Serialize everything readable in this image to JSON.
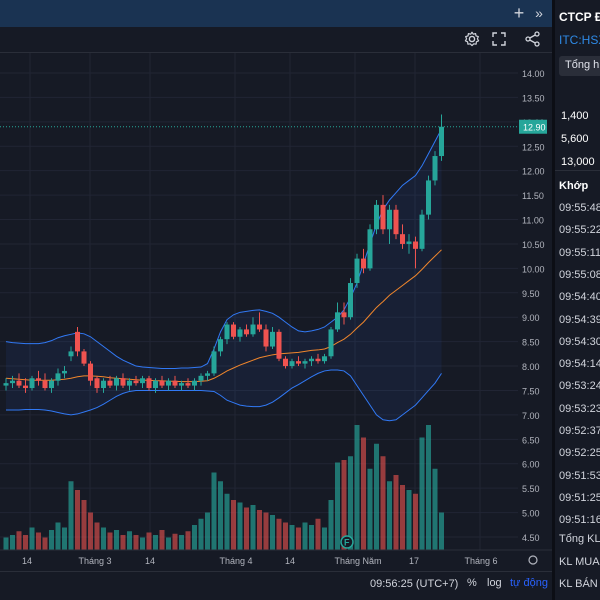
{
  "header": {
    "plus_icon": "plus-icon",
    "collapse_icon": "double-chevron-right-icon",
    "settings_icon": "gear-icon",
    "fullscreen_icon": "fullscreen-icon",
    "share_icon": "share-icon"
  },
  "chart_data": {
    "type": "candlestick",
    "y_ticks": [
      "14.00",
      "13.50",
      "13.00",
      "12.50",
      "12.00",
      "11.50",
      "11.00",
      "10.50",
      "10.00",
      "9.50",
      "9.00",
      "8.50",
      "8.00",
      "7.50",
      "7.00",
      "6.50",
      "6.00",
      "5.50",
      "5.00",
      "4.50"
    ],
    "ylim": [
      4.3,
      14.3
    ],
    "last_price": "12.90",
    "x_labels": [
      "14",
      "Tháng 3",
      "14",
      "Tháng 4",
      "14",
      "Tháng Năm",
      "17",
      "Tháng 6"
    ],
    "event_marker": "F",
    "colors": {
      "up": "#26a69a",
      "down": "#ef5350",
      "ma": "#f0862c",
      "bands": "#3179f5",
      "grid": "#212534"
    },
    "candles": [
      {
        "o": 7.6,
        "h": 7.75,
        "l": 7.5,
        "c": 7.65
      },
      {
        "o": 7.65,
        "h": 7.8,
        "l": 7.55,
        "c": 7.7
      },
      {
        "o": 7.7,
        "h": 7.85,
        "l": 7.55,
        "c": 7.6
      },
      {
        "o": 7.6,
        "h": 7.75,
        "l": 7.45,
        "c": 7.55
      },
      {
        "o": 7.55,
        "h": 7.8,
        "l": 7.5,
        "c": 7.75
      },
      {
        "o": 7.75,
        "h": 7.9,
        "l": 7.6,
        "c": 7.7
      },
      {
        "o": 7.7,
        "h": 7.85,
        "l": 7.5,
        "c": 7.55
      },
      {
        "o": 7.55,
        "h": 7.75,
        "l": 7.45,
        "c": 7.7
      },
      {
        "o": 7.7,
        "h": 7.95,
        "l": 7.6,
        "c": 7.85
      },
      {
        "o": 7.85,
        "h": 8.0,
        "l": 7.75,
        "c": 7.9
      },
      {
        "o": 8.2,
        "h": 8.4,
        "l": 8.1,
        "c": 8.3
      },
      {
        "o": 8.7,
        "h": 8.8,
        "l": 8.2,
        "c": 8.3
      },
      {
        "o": 8.3,
        "h": 8.35,
        "l": 8.0,
        "c": 8.05
      },
      {
        "o": 8.05,
        "h": 8.1,
        "l": 7.6,
        "c": 7.7
      },
      {
        "o": 7.75,
        "h": 7.8,
        "l": 7.45,
        "c": 7.55
      },
      {
        "o": 7.55,
        "h": 7.75,
        "l": 7.45,
        "c": 7.7
      },
      {
        "o": 7.7,
        "h": 7.8,
        "l": 7.55,
        "c": 7.6
      },
      {
        "o": 7.6,
        "h": 7.8,
        "l": 7.5,
        "c": 7.75
      },
      {
        "o": 7.75,
        "h": 7.85,
        "l": 7.55,
        "c": 7.6
      },
      {
        "o": 7.6,
        "h": 7.75,
        "l": 7.5,
        "c": 7.7
      },
      {
        "o": 7.7,
        "h": 7.8,
        "l": 7.6,
        "c": 7.65
      },
      {
        "o": 7.65,
        "h": 7.8,
        "l": 7.55,
        "c": 7.75
      },
      {
        "o": 7.75,
        "h": 7.8,
        "l": 7.5,
        "c": 7.55
      },
      {
        "o": 7.55,
        "h": 7.75,
        "l": 7.45,
        "c": 7.7
      },
      {
        "o": 7.7,
        "h": 7.8,
        "l": 7.55,
        "c": 7.6
      },
      {
        "o": 7.6,
        "h": 7.75,
        "l": 7.5,
        "c": 7.7
      },
      {
        "o": 7.7,
        "h": 7.8,
        "l": 7.55,
        "c": 7.6
      },
      {
        "o": 7.6,
        "h": 7.7,
        "l": 7.5,
        "c": 7.65
      },
      {
        "o": 7.65,
        "h": 7.75,
        "l": 7.55,
        "c": 7.6
      },
      {
        "o": 7.6,
        "h": 7.75,
        "l": 7.5,
        "c": 7.7
      },
      {
        "o": 7.7,
        "h": 7.85,
        "l": 7.6,
        "c": 7.8
      },
      {
        "o": 7.8,
        "h": 7.9,
        "l": 7.7,
        "c": 7.85
      },
      {
        "o": 7.85,
        "h": 8.4,
        "l": 7.8,
        "c": 8.3
      },
      {
        "o": 8.3,
        "h": 8.6,
        "l": 8.2,
        "c": 8.55
      },
      {
        "o": 8.55,
        "h": 8.9,
        "l": 8.45,
        "c": 8.85
      },
      {
        "o": 8.85,
        "h": 8.9,
        "l": 8.55,
        "c": 8.6
      },
      {
        "o": 8.6,
        "h": 8.8,
        "l": 8.5,
        "c": 8.75
      },
      {
        "o": 8.75,
        "h": 8.85,
        "l": 8.6,
        "c": 8.65
      },
      {
        "o": 8.65,
        "h": 9.0,
        "l": 8.6,
        "c": 8.85
      },
      {
        "o": 8.85,
        "h": 9.1,
        "l": 8.7,
        "c": 8.75
      },
      {
        "o": 8.75,
        "h": 8.85,
        "l": 8.3,
        "c": 8.4
      },
      {
        "o": 8.4,
        "h": 8.8,
        "l": 8.35,
        "c": 8.7
      },
      {
        "o": 8.7,
        "h": 8.75,
        "l": 8.1,
        "c": 8.15
      },
      {
        "o": 8.15,
        "h": 8.2,
        "l": 7.95,
        "c": 8.0
      },
      {
        "o": 8.0,
        "h": 8.15,
        "l": 7.95,
        "c": 8.1
      },
      {
        "o": 8.1,
        "h": 8.2,
        "l": 8.0,
        "c": 8.05
      },
      {
        "o": 8.05,
        "h": 8.15,
        "l": 7.95,
        "c": 8.1
      },
      {
        "o": 8.1,
        "h": 8.2,
        "l": 8.0,
        "c": 8.15
      },
      {
        "o": 8.15,
        "h": 8.25,
        "l": 8.05,
        "c": 8.1
      },
      {
        "o": 8.1,
        "h": 8.25,
        "l": 8.05,
        "c": 8.2
      },
      {
        "o": 8.2,
        "h": 8.8,
        "l": 8.15,
        "c": 8.75
      },
      {
        "o": 8.75,
        "h": 9.3,
        "l": 8.7,
        "c": 9.1
      },
      {
        "o": 9.1,
        "h": 9.3,
        "l": 8.85,
        "c": 9.0
      },
      {
        "o": 9.0,
        "h": 9.8,
        "l": 8.95,
        "c": 9.7
      },
      {
        "o": 9.7,
        "h": 10.3,
        "l": 9.6,
        "c": 10.2
      },
      {
        "o": 10.2,
        "h": 10.4,
        "l": 9.9,
        "c": 10.0
      },
      {
        "o": 10.0,
        "h": 10.9,
        "l": 9.95,
        "c": 10.8
      },
      {
        "o": 10.8,
        "h": 11.4,
        "l": 10.7,
        "c": 11.3
      },
      {
        "o": 11.3,
        "h": 11.5,
        "l": 10.7,
        "c": 10.8
      },
      {
        "o": 10.8,
        "h": 11.3,
        "l": 10.5,
        "c": 11.2
      },
      {
        "o": 11.2,
        "h": 11.3,
        "l": 10.6,
        "c": 10.7
      },
      {
        "o": 10.7,
        "h": 10.9,
        "l": 10.4,
        "c": 10.5
      },
      {
        "o": 10.5,
        "h": 10.7,
        "l": 10.3,
        "c": 10.55
      },
      {
        "o": 10.55,
        "h": 10.65,
        "l": 10.0,
        "c": 10.4
      },
      {
        "o": 10.4,
        "h": 11.2,
        "l": 10.35,
        "c": 11.1
      },
      {
        "o": 11.1,
        "h": 11.9,
        "l": 11.0,
        "c": 11.8
      },
      {
        "o": 11.8,
        "h": 12.4,
        "l": 11.7,
        "c": 12.3
      },
      {
        "o": 12.3,
        "h": 13.15,
        "l": 12.2,
        "c": 12.9
      }
    ],
    "ma": [
      7.75,
      7.74,
      7.73,
      7.72,
      7.71,
      7.71,
      7.71,
      7.71,
      7.72,
      7.73,
      7.75,
      7.78,
      7.8,
      7.8,
      7.79,
      7.78,
      7.76,
      7.75,
      7.74,
      7.73,
      7.72,
      7.71,
      7.71,
      7.7,
      7.7,
      7.69,
      7.69,
      7.68,
      7.68,
      7.68,
      7.69,
      7.7,
      7.75,
      7.82,
      7.9,
      7.96,
      8.02,
      8.07,
      8.12,
      8.17,
      8.2,
      8.23,
      8.25,
      8.26,
      8.27,
      8.28,
      8.3,
      8.32,
      8.33,
      8.35,
      8.4,
      8.48,
      8.55,
      8.65,
      8.78,
      8.9,
      9.05,
      9.2,
      9.32,
      9.45,
      9.55,
      9.65,
      9.75,
      9.85,
      9.98,
      10.12,
      10.25,
      10.38
    ],
    "upper": [
      8.5,
      8.48,
      8.47,
      8.46,
      8.46,
      8.46,
      8.48,
      8.52,
      8.58,
      8.62,
      8.65,
      8.68,
      8.66,
      8.6,
      8.5,
      8.4,
      8.3,
      8.2,
      8.12,
      8.06,
      8.0,
      7.98,
      7.97,
      7.96,
      7.95,
      7.95,
      7.95,
      7.96,
      7.96,
      7.97,
      7.98,
      8.05,
      8.35,
      8.7,
      8.95,
      9.05,
      9.1,
      9.12,
      9.14,
      9.15,
      9.12,
      9.08,
      9.0,
      8.9,
      8.8,
      8.72,
      8.7,
      8.72,
      8.75,
      8.8,
      8.9,
      9.0,
      9.15,
      9.4,
      9.7,
      10.1,
      10.5,
      10.9,
      11.2,
      11.4,
      11.55,
      11.7,
      11.8,
      11.9,
      12.1,
      12.35,
      12.6,
      12.85
    ],
    "lower": [
      7.1,
      7.1,
      7.1,
      7.11,
      7.11,
      7.11,
      7.1,
      7.08,
      7.05,
      7.02,
      7.0,
      7.02,
      7.06,
      7.1,
      7.15,
      7.22,
      7.3,
      7.38,
      7.44,
      7.48,
      7.5,
      7.5,
      7.5,
      7.5,
      7.5,
      7.5,
      7.5,
      7.5,
      7.5,
      7.5,
      7.5,
      7.49,
      7.48,
      7.4,
      7.3,
      7.25,
      7.2,
      7.18,
      7.17,
      7.17,
      7.2,
      7.26,
      7.35,
      7.45,
      7.55,
      7.62,
      7.7,
      7.78,
      7.85,
      7.9,
      7.92,
      7.92,
      7.9,
      7.8,
      7.6,
      7.4,
      7.2,
      7.0,
      6.9,
      6.88,
      6.9,
      7.0,
      7.1,
      7.2,
      7.35,
      7.5,
      7.65,
      7.85
    ],
    "volumes": [
      0.1,
      0.12,
      0.15,
      0.12,
      0.18,
      0.14,
      0.1,
      0.16,
      0.22,
      0.18,
      0.55,
      0.48,
      0.4,
      0.3,
      0.22,
      0.18,
      0.14,
      0.16,
      0.12,
      0.15,
      0.12,
      0.1,
      0.14,
      0.12,
      0.16,
      0.1,
      0.13,
      0.12,
      0.15,
      0.2,
      0.25,
      0.3,
      0.62,
      0.55,
      0.45,
      0.4,
      0.38,
      0.34,
      0.36,
      0.32,
      0.3,
      0.28,
      0.25,
      0.22,
      0.2,
      0.18,
      0.22,
      0.2,
      0.25,
      0.18,
      0.4,
      0.7,
      0.72,
      0.75,
      1.0,
      0.9,
      0.65,
      0.85,
      0.75,
      0.55,
      0.6,
      0.52,
      0.48,
      0.45,
      0.9,
      1.0,
      0.65,
      0.3
    ]
  },
  "bottom": {
    "clock": "09:56:25 (UTC+7)",
    "percent": "%",
    "log": "log",
    "auto": "tự động",
    "settings_icon": "gear-icon"
  },
  "side": {
    "title": "CTCP Đ",
    "ticker": "ITC:HSX",
    "tab": "Tổng h",
    "values": [
      "1,400",
      "5,600",
      "13,000"
    ],
    "match_header": "Khớp",
    "times": [
      "09:55:48",
      "09:55:22",
      "09:55:11",
      "09:55:08",
      "09:54:40",
      "09:54:39",
      "09:54:30",
      "09:54:14",
      "09:53:24",
      "09:53:23",
      "09:52:37",
      "09:52:25",
      "09:51:53",
      "09:51:25",
      "09:51:16"
    ],
    "footer": [
      "Tổng KL k",
      "KL MUA c",
      "KL BÁN c"
    ]
  }
}
